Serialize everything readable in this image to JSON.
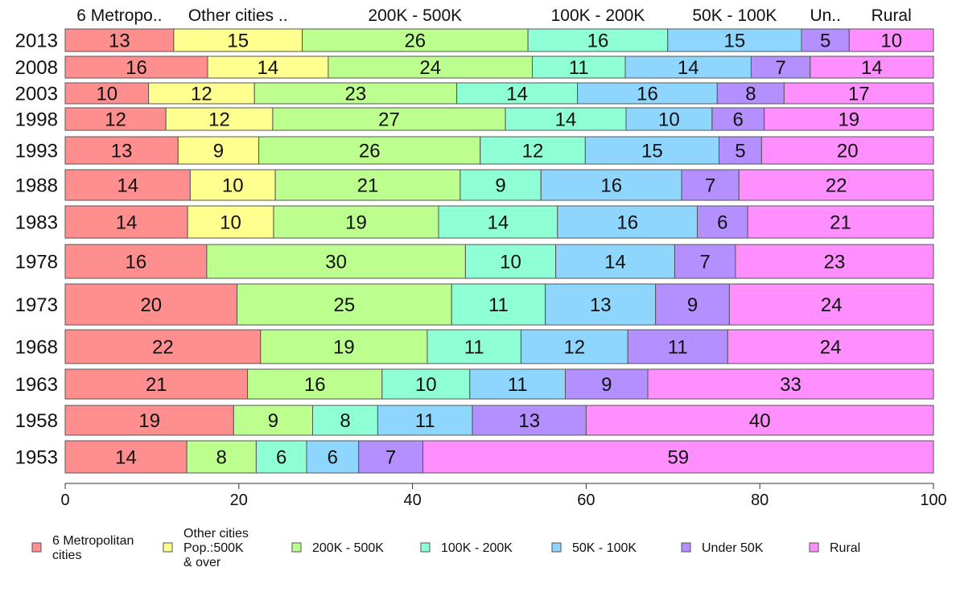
{
  "chart_data": {
    "type": "bar",
    "orientation": "horizontal",
    "stacked": true,
    "xlim": [
      0,
      100
    ],
    "x_ticks": [
      0,
      20,
      40,
      60,
      80,
      100
    ],
    "grid": false,
    "legend_position": "bottom",
    "categories": [
      "2013",
      "2008",
      "2003",
      "1998",
      "1993",
      "1988",
      "1983",
      "1978",
      "1973",
      "1968",
      "1963",
      "1958",
      "1953"
    ],
    "series": [
      {
        "name": "6 Metropolitan cities",
        "legend_lines": [
          "6 Metropolitan",
          " cities"
        ],
        "top_label": "6 Metropo..",
        "color": "#ff8f8f",
        "values": [
          12.5,
          16.4,
          9.6,
          11.6,
          13.0,
          14.4,
          14.1,
          16.3,
          19.8,
          22.5,
          21.0,
          19.4,
          14.0
        ],
        "labels": [
          "13",
          "16",
          "10",
          "12",
          "13",
          "14",
          "14",
          "16",
          "20",
          "22",
          "21",
          "19",
          "14"
        ]
      },
      {
        "name": "Other cities Pop.:500K & over",
        "legend_lines": [
          "Other cities",
          "Pop.:500K",
          " & over"
        ],
        "top_label": "Other cities ..",
        "color": "#ffff8f",
        "values": [
          14.8,
          13.9,
          12.2,
          12.3,
          9.3,
          9.8,
          9.9,
          null,
          null,
          null,
          null,
          null,
          null
        ],
        "labels": [
          "15",
          "14",
          "12",
          "12",
          "9",
          "10",
          "10",
          "",
          "",
          "",
          "",
          "",
          ""
        ]
      },
      {
        "name": "200K - 500K",
        "legend_lines": [
          "200K - 500K"
        ],
        "top_label": "200K - 500K",
        "color": "#bdff8f",
        "values": [
          26.0,
          23.5,
          23.3,
          26.8,
          25.5,
          21.3,
          19.0,
          29.8,
          24.7,
          19.2,
          15.5,
          9.1,
          8.0
        ],
        "labels": [
          "26",
          "24",
          "23",
          "27",
          "26",
          "21",
          "19",
          "30",
          "25",
          "19",
          "16",
          "9",
          "8"
        ]
      },
      {
        "name": "100K - 200K",
        "legend_lines": [
          "100K - 200K"
        ],
        "top_label": "100K - 200K",
        "color": "#8fffd6",
        "values": [
          16.1,
          10.7,
          13.9,
          13.9,
          12.1,
          9.3,
          13.7,
          10.4,
          10.8,
          10.8,
          10.1,
          7.5,
          5.8
        ],
        "labels": [
          "16",
          "11",
          "14",
          "14",
          "12",
          "9",
          "14",
          "10",
          "11",
          "11",
          "10",
          "8",
          "6"
        ]
      },
      {
        "name": "50K - 100K",
        "legend_lines": [
          "50K - 100K"
        ],
        "top_label": "50K - 100K",
        "color": "#8fd6ff",
        "values": [
          15.4,
          14.5,
          16.1,
          9.9,
          15.4,
          16.2,
          16.1,
          13.7,
          12.7,
          12.3,
          11.0,
          10.9,
          6.0
        ],
        "labels": [
          "15",
          "14",
          "16",
          "10",
          "15",
          "16",
          "16",
          "14",
          "13",
          "12",
          "11",
          "11",
          "6"
        ]
      },
      {
        "name": "Under 50K",
        "legend_lines": [
          "Under 50K"
        ],
        "top_label": "Un..",
        "color": "#b38fff",
        "values": [
          5.5,
          6.8,
          7.7,
          6.0,
          4.9,
          6.6,
          5.8,
          7.0,
          8.5,
          11.5,
          9.5,
          13.1,
          7.4
        ],
        "labels": [
          "5",
          "7",
          "8",
          "6",
          "5",
          "7",
          "6",
          "7",
          "9",
          "11",
          "9",
          "13",
          "7"
        ]
      },
      {
        "name": "Rural",
        "legend_lines": [
          "Rural"
        ],
        "top_label": "Rural",
        "color": "#ff8fff",
        "values": [
          9.7,
          14.2,
          17.2,
          19.5,
          19.8,
          22.4,
          21.4,
          22.8,
          23.5,
          23.7,
          32.9,
          40.0,
          58.8
        ],
        "labels": [
          "10",
          "14",
          "17",
          "19",
          "20",
          "22",
          "21",
          "23",
          "24",
          "24",
          "33",
          "40",
          "59"
        ]
      }
    ]
  }
}
